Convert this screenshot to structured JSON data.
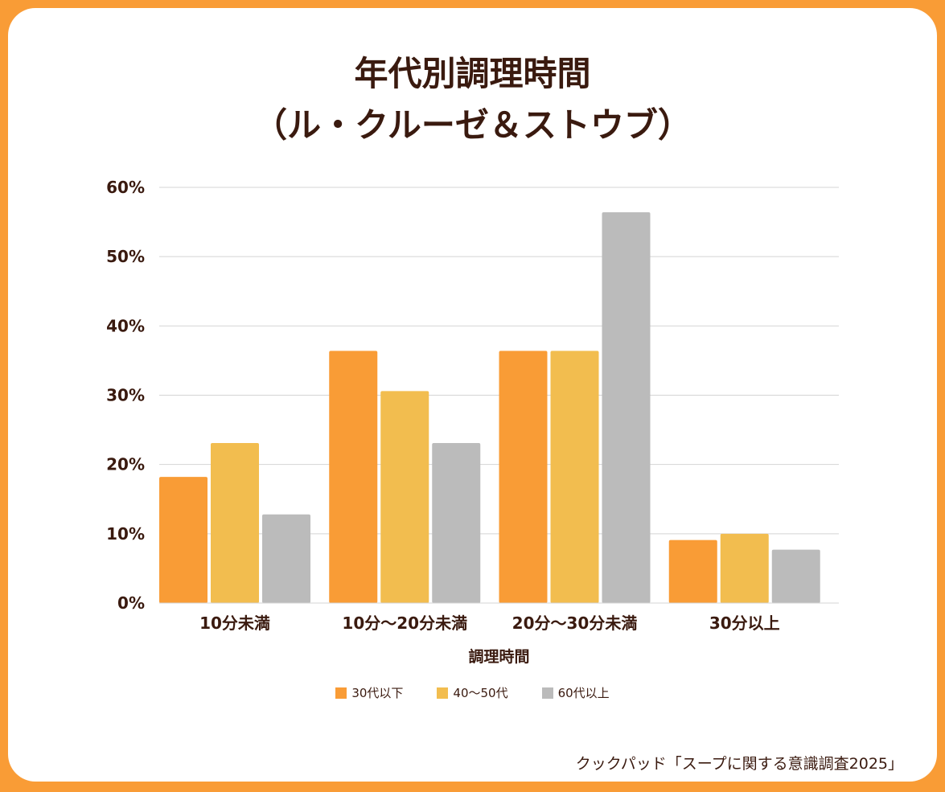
{
  "chart_data": {
    "type": "bar",
    "title_line1": "年代別調理時間",
    "title_line2": "（ル・クルーゼ＆ストウブ）",
    "xlabel": "調理時間",
    "ylabel": "",
    "categories": [
      "10分未満",
      "10分〜20分未満",
      "20分〜30分未満",
      "30分以上"
    ],
    "series": [
      {
        "name": "30代以下",
        "color": "#f99c36",
        "values": [
          18.2,
          36.4,
          36.4,
          9.1
        ]
      },
      {
        "name": "40〜50代",
        "color": "#f2bd4f",
        "values": [
          23.1,
          30.6,
          36.4,
          10.0
        ]
      },
      {
        "name": "60代以上",
        "color": "#bbbbbb",
        "values": [
          12.8,
          23.1,
          56.4,
          7.7
        ]
      }
    ],
    "ylim": [
      0,
      60
    ],
    "yticks": [
      0,
      10,
      20,
      30,
      40,
      50,
      60
    ],
    "ytick_labels": [
      "0%",
      "10%",
      "20%",
      "30%",
      "40%",
      "50%",
      "60%"
    ],
    "grid": true,
    "legend_position": "bottom-center"
  },
  "source": "クックパッド「スープに関する意識調査2025」",
  "colors": {
    "frame": "#f99c36",
    "text": "#3a1a0f",
    "grid": "#d4d4d4"
  }
}
